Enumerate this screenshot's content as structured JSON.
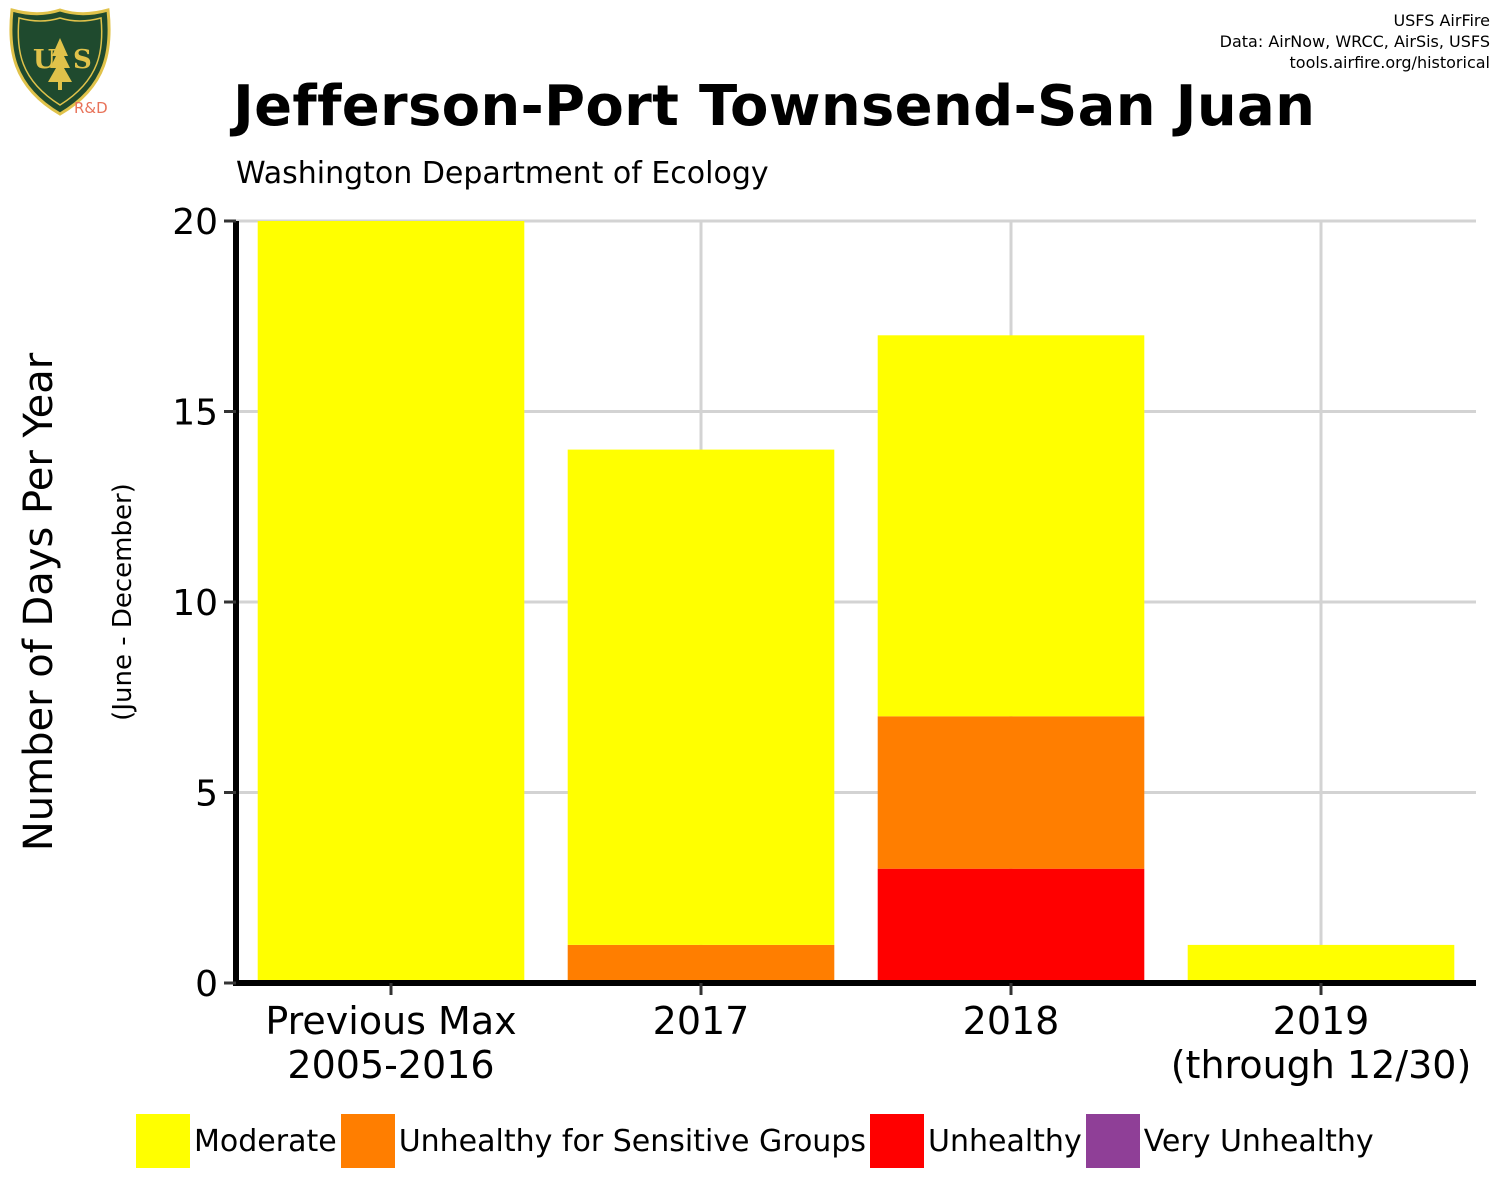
{
  "credits": {
    "line1": "USFS AirFire",
    "line2": "Data: AirNow, WRCC, AirSis, USFS",
    "line3": "tools.airfire.org/historical"
  },
  "logo": {
    "icon": "usfs-shield-icon",
    "label": "R&D"
  },
  "chart_data": {
    "type": "bar",
    "stacked": true,
    "title": "Jefferson-Port Townsend-San Juan",
    "subtitle": "Washington Department of Ecology",
    "ylabel": "Number of Days Per Year",
    "ylabel_sub": "(June - December)",
    "xlabel": "",
    "ylim": [
      0,
      20
    ],
    "yticks": [
      0,
      5,
      10,
      15,
      20
    ],
    "grid": true,
    "legend_position": "bottom",
    "categories": [
      [
        "Previous Max",
        "2005-2016"
      ],
      [
        "2017"
      ],
      [
        "2018"
      ],
      [
        "2019",
        "(through 12/30)"
      ]
    ],
    "series": [
      {
        "name": "Unhealthy",
        "color": "#ff0000",
        "values": [
          0,
          0,
          3,
          0
        ]
      },
      {
        "name": "Unhealthy for Sensitive Groups",
        "color": "#ff7e00",
        "values": [
          0,
          1,
          4,
          0
        ]
      },
      {
        "name": "Moderate",
        "color": "#ffff00",
        "values": [
          20,
          13,
          10,
          1
        ]
      },
      {
        "name": "Very Unhealthy",
        "color": "#8f3f97",
        "values": [
          0,
          0,
          0,
          0
        ]
      }
    ],
    "legend": [
      {
        "name": "Moderate",
        "color": "#ffff00"
      },
      {
        "name": "Unhealthy for Sensitive Groups",
        "color": "#ff7e00"
      },
      {
        "name": "Unhealthy",
        "color": "#ff0000"
      },
      {
        "name": "Very Unhealthy",
        "color": "#8f3f97"
      }
    ]
  }
}
